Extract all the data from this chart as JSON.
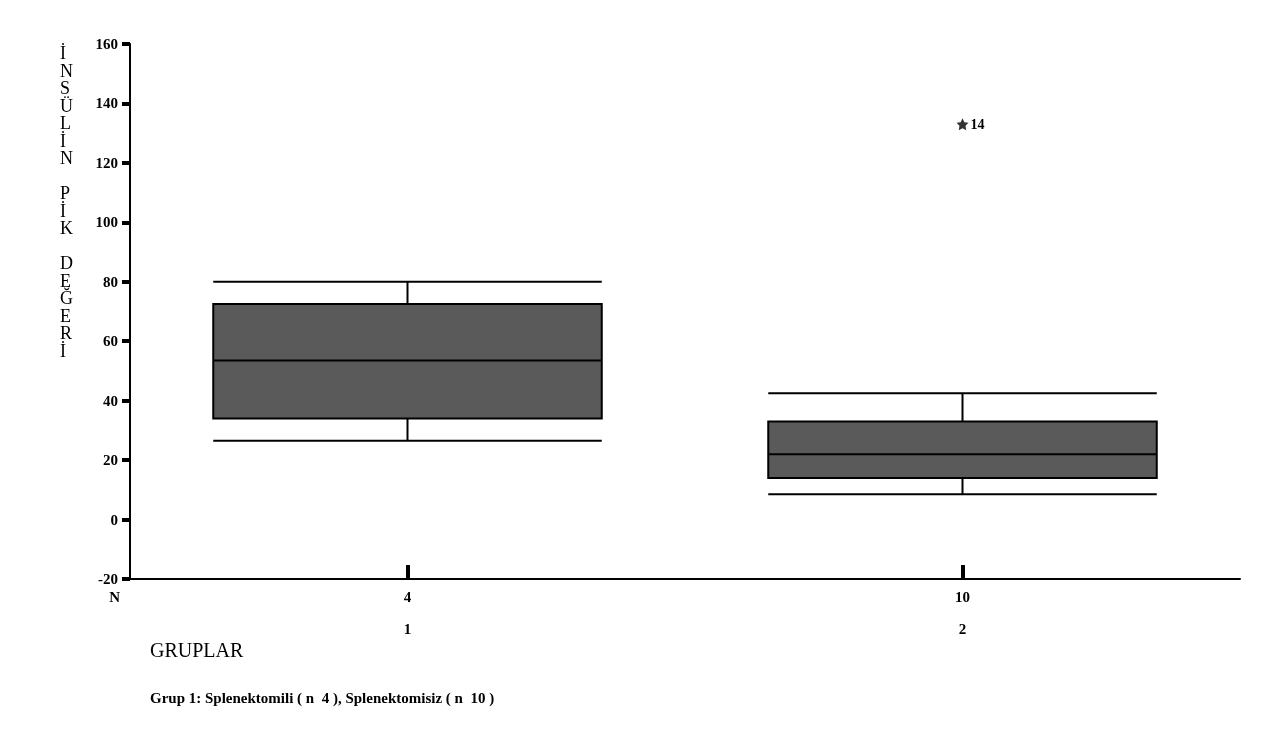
{
  "chart_data": {
    "type": "box",
    "categories": [
      "1",
      "2"
    ],
    "color": "#5a5a5a",
    "boxes": [
      {
        "low": 26.5,
        "q1": 34,
        "median": 53.5,
        "q3": 72.5,
        "high": 80
      },
      {
        "low": 8.5,
        "q1": 14,
        "median": 22,
        "q3": 33,
        "high": 42.5,
        "outliers": [
          133
        ]
      }
    ],
    "ylim": [
      -20,
      160
    ],
    "yticks": [
      -20,
      0,
      20,
      40,
      60,
      80,
      100,
      120,
      140,
      160
    ],
    "grid": false,
    "marker": "star",
    "ylabel": "İNSÜLİN PİK DEĞERİ",
    "xlabel": "GRUPLAR",
    "annotations": [
      "14",
      "N",
      "4",
      "10",
      "Grup 1: Splenektomili ( n  4 ), Splenektomisiz ( n  10 )"
    ]
  }
}
